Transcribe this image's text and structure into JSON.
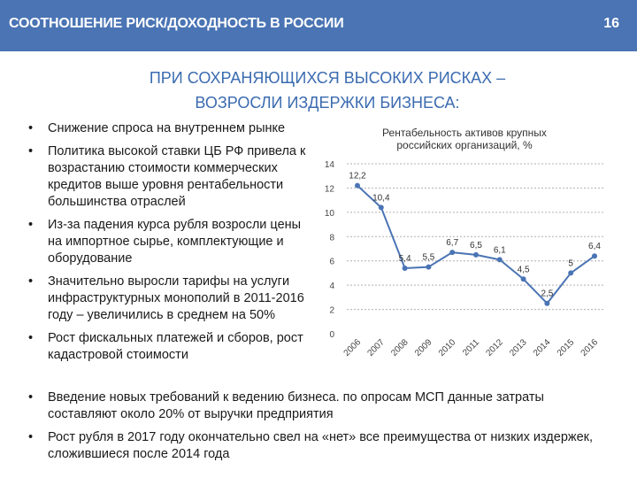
{
  "header": {
    "title": "СООТНОШЕНИЕ РИСК/ДОХОДНОСТЬ В РОССИИ",
    "page_number": "16",
    "bar_color": "#4a74b4"
  },
  "subtitle": {
    "line1": "ПРИ СОХРАНЯЮЩИХСЯ ВЫСОКИХ РИСКАХ –",
    "line2": "ВОЗРОСЛИ ИЗДЕРЖКИ БИЗНЕСА:"
  },
  "bullets_left": [
    "Снижение спроса на внутреннем рынке",
    "Политика высокой ставки ЦБ РФ привела к возрастанию стоимости коммерческих кредитов выше уровня рентабельности большинства отраслей",
    "Из-за падения курса рубля возросли цены на импортное сырье, комплектующие и оборудование",
    "Значительно выросли тарифы на услуги инфраструктурных монополий в 2011-2016 году – увеличились в среднем на 50%",
    "Рост фискальных платежей и сборов, рост кадастровой стоимости"
  ],
  "bullets_bottom": [
    "Введение новых требований к ведению бизнеса. по опросам МСП данные затраты составляют около 20% от выручки предприятия",
    "Рост рубля в 2017 году окончательно свел на «нет» все преимущества от низких издержек, сложившиеся после 2014 года"
  ],
  "chart_data": {
    "type": "line",
    "title": "Рентабельность активов крупных российских организаций, %",
    "x": [
      "2006",
      "2007",
      "2008",
      "2009",
      "2010",
      "2011",
      "2012",
      "2013",
      "2014",
      "2015",
      "2016"
    ],
    "values": [
      12.2,
      10.4,
      5.4,
      5.5,
      6.7,
      6.5,
      6.1,
      4.5,
      2.5,
      5,
      6.4
    ],
    "data_labels": [
      "12,2",
      "10,4",
      "5,4",
      "5,5",
      "6,7",
      "6,5",
      "6,1",
      "4,5",
      "2,5",
      "5",
      "6,4"
    ],
    "y_ticks": [
      "0",
      "2",
      "4",
      "6",
      "8",
      "10",
      "12",
      "14"
    ],
    "ylim": [
      0,
      14
    ],
    "grid": true,
    "line_color": "#4a74b4"
  }
}
